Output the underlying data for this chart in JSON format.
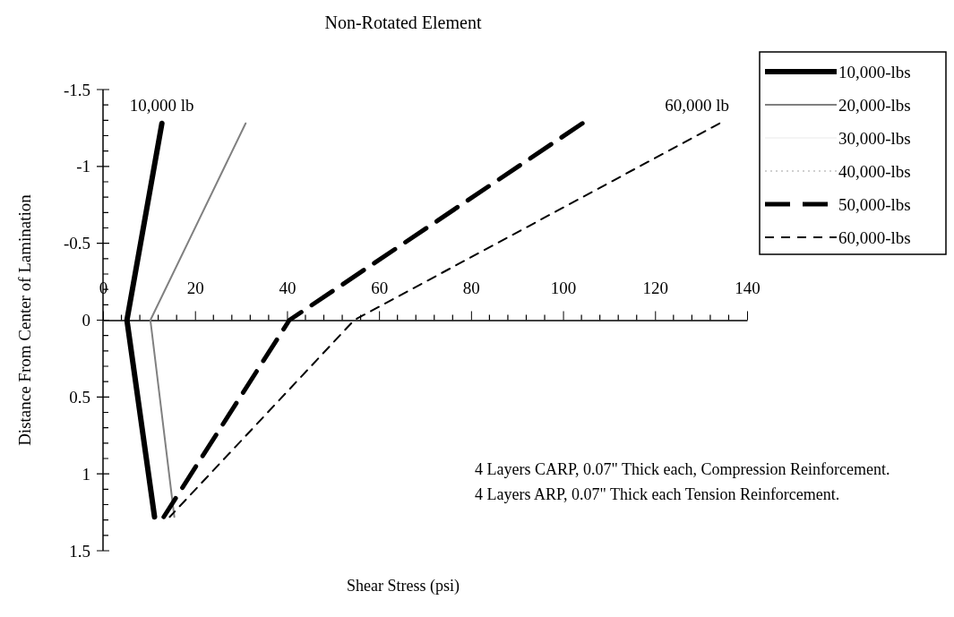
{
  "chart_data": {
    "type": "line",
    "title": "Non-Rotated Element",
    "xlabel": "Shear Stress (psi)",
    "ylabel": "Distance From Center of Lamination",
    "xlim": [
      0,
      140
    ],
    "xticks": [
      0,
      20,
      40,
      60,
      80,
      100,
      120,
      140
    ],
    "ylim": [
      1.5,
      -1.5
    ],
    "yticks": [
      -1.5,
      -1,
      -0.5,
      0,
      0.5,
      1,
      1.5
    ],
    "grid": false,
    "legend": "top right",
    "marker": "none",
    "series": [
      {
        "name": "10,000-lbs",
        "color": "#000000",
        "line_style": "solid",
        "x": [
          12.8,
          5.2,
          11.2
        ],
        "values": [
          -1.28,
          0,
          1.28
        ]
      },
      {
        "name": "20,000-lbs",
        "color": "#808080",
        "line_style": "solid",
        "x": [
          31,
          10.3,
          15.5
        ],
        "values": [
          -1.28,
          0,
          1.28
        ]
      },
      {
        "name": "30,000-lbs",
        "color": "#f4f4f4",
        "line_style": "solid",
        "x": [
          null,
          null,
          null
        ],
        "values": [
          null,
          null,
          null
        ]
      },
      {
        "name": "40,000-lbs",
        "color": "#d0d0d0",
        "line_style": "dotted",
        "x": [
          null,
          null,
          null
        ],
        "values": [
          null,
          null,
          null
        ]
      },
      {
        "name": "50,000-lbs",
        "color": "#000000",
        "line_style": "dashed",
        "x": [
          104.2,
          40.5,
          13.2
        ],
        "values": [
          -1.28,
          0,
          1.28
        ]
      },
      {
        "name": "60,000-lbs",
        "color": "#000000",
        "line_style": "dashed",
        "x": [
          134,
          54.6,
          14.5
        ],
        "values": [
          -1.28,
          0,
          1.28
        ]
      }
    ],
    "annotations": [
      {
        "text": "10,000 lb",
        "x": 12.8,
        "y": -1.28
      },
      {
        "text": "60,000 lb",
        "x": 134,
        "y": -1.28
      },
      "4 Layers CARP, 0.07\" Thick each, Compression Reinforcement.",
      "4 Layers ARP, 0.07\" Thick each Tension Reinforcement."
    ]
  }
}
